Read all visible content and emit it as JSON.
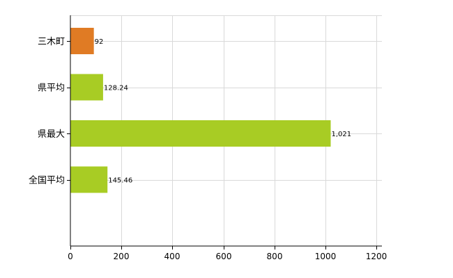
{
  "chart_data": {
    "type": "bar",
    "orientation": "horizontal",
    "categories": [
      "三木町",
      "県平均",
      "県最大",
      "全国平均"
    ],
    "values": [
      92,
      128.24,
      1021,
      145.46
    ],
    "value_labels": [
      "92",
      "128.24",
      "1,021",
      "145.46"
    ],
    "colors": [
      "#e07b24",
      "#a8cc24",
      "#a8cc24",
      "#a8cc24"
    ],
    "xlim": [
      0,
      1200
    ],
    "xticks": [
      "0",
      "200",
      "400",
      "600",
      "800",
      "1000",
      "1200"
    ],
    "grid": true
  }
}
